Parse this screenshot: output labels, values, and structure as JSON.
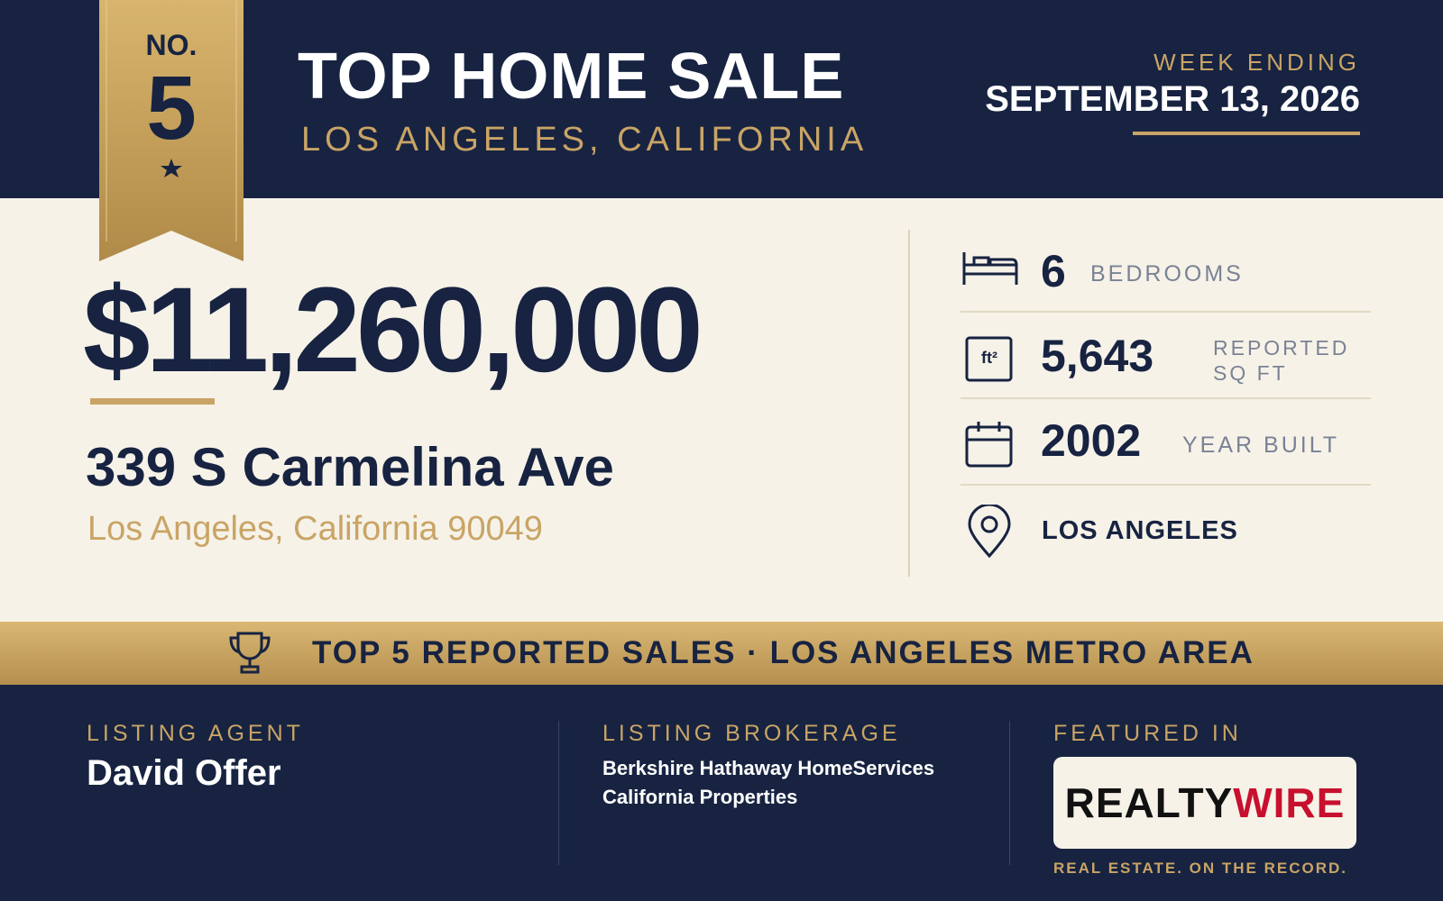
{
  "badge": {
    "prefix": "NO.",
    "rank": "5"
  },
  "header": {
    "title": "TOP HOME SALE",
    "location": "LOS ANGELES, CALIFORNIA",
    "week_label": "WEEK ENDING",
    "week_date": "SEPTEMBER 13, 2026"
  },
  "sale": {
    "price": "$11,260,000",
    "address": "339 S Carmelina Ave",
    "city_line": "Los Angeles, California 90049"
  },
  "details": {
    "bedrooms": {
      "value": "6",
      "label": "BEDROOMS"
    },
    "area": {
      "icon_text": "ft²",
      "value": "5,643",
      "label": "REPORTED SQ FT"
    },
    "year": {
      "value": "2002",
      "label": "YEAR BUILT"
    },
    "location": {
      "label": "LOS ANGELES"
    }
  },
  "banner": {
    "text": "TOP 5 REPORTED SALES · LOS ANGELES METRO AREA"
  },
  "footer": {
    "agent": {
      "label": "LISTING AGENT",
      "name": "David Offer"
    },
    "brokerage": {
      "label": "LISTING BROKERAGE",
      "lines": [
        "Berkshire Hathaway HomeServices",
        "California Properties"
      ]
    },
    "featured": {
      "label": "FEATURED IN",
      "logo_primary": "REALTY",
      "logo_accent": "WIRE",
      "tagline": "REAL ESTATE. ON THE RECORD."
    }
  }
}
